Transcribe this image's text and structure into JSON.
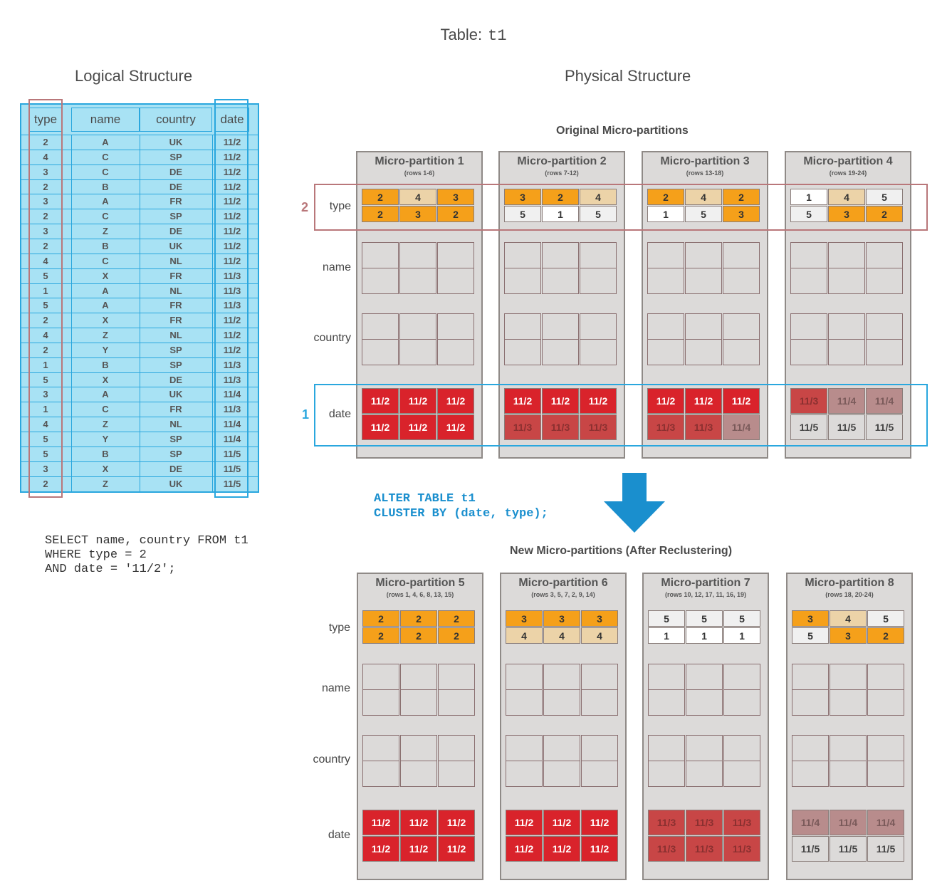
{
  "title": {
    "label": "Table:",
    "name": "t1"
  },
  "logical": {
    "title": "Logical Structure",
    "headers": [
      "type",
      "name",
      "country",
      "date"
    ],
    "rows": [
      [
        "2",
        "A",
        "UK",
        "11/2"
      ],
      [
        "4",
        "C",
        "SP",
        "11/2"
      ],
      [
        "3",
        "C",
        "DE",
        "11/2"
      ],
      [
        "2",
        "B",
        "DE",
        "11/2"
      ],
      [
        "3",
        "A",
        "FR",
        "11/2"
      ],
      [
        "2",
        "C",
        "SP",
        "11/2"
      ],
      [
        "3",
        "Z",
        "DE",
        "11/2"
      ],
      [
        "2",
        "B",
        "UK",
        "11/2"
      ],
      [
        "4",
        "C",
        "NL",
        "11/2"
      ],
      [
        "5",
        "X",
        "FR",
        "11/3"
      ],
      [
        "1",
        "A",
        "NL",
        "11/3"
      ],
      [
        "5",
        "A",
        "FR",
        "11/3"
      ],
      [
        "2",
        "X",
        "FR",
        "11/2"
      ],
      [
        "4",
        "Z",
        "NL",
        "11/2"
      ],
      [
        "2",
        "Y",
        "SP",
        "11/2"
      ],
      [
        "1",
        "B",
        "SP",
        "11/3"
      ],
      [
        "5",
        "X",
        "DE",
        "11/3"
      ],
      [
        "3",
        "A",
        "UK",
        "11/4"
      ],
      [
        "1",
        "C",
        "FR",
        "11/3"
      ],
      [
        "4",
        "Z",
        "NL",
        "11/4"
      ],
      [
        "5",
        "Y",
        "SP",
        "11/4"
      ],
      [
        "5",
        "B",
        "SP",
        "11/5"
      ],
      [
        "3",
        "X",
        "DE",
        "11/5"
      ],
      [
        "2",
        "Z",
        "UK",
        "11/5"
      ]
    ]
  },
  "query": "SELECT name, country FROM t1\nWHERE type = 2\nAND date = '11/2';",
  "physical": {
    "title": "Physical Structure"
  },
  "original_title": "Original Micro-partitions",
  "new_title": "New Micro-partitions (After Reclustering)",
  "alter_sql": "ALTER TABLE t1\nCLUSTER BY (date, type);",
  "row_labels": {
    "type": "type",
    "name": "name",
    "country": "country",
    "date": "date"
  },
  "markers": {
    "one": "1",
    "two": "2"
  },
  "colors": {
    "orange": "#f5a01a",
    "tan": "#ecd3a8",
    "white": "#ffffff",
    "light": "#f0f0f0",
    "red": "#d9232b",
    "dullred": "#c84646",
    "mauve": "#b88c8c",
    "pale": "#dcdad9"
  },
  "original": [
    {
      "title": "Micro-partition 1",
      "rows": "(rows 1-6)",
      "type": [
        [
          "2",
          "orange"
        ],
        [
          "4",
          "tan"
        ],
        [
          "3",
          "orange"
        ],
        [
          "2",
          "orange"
        ],
        [
          "3",
          "orange"
        ],
        [
          "2",
          "orange"
        ]
      ],
      "date": [
        [
          "11/2",
          "red"
        ],
        [
          "11/2",
          "red"
        ],
        [
          "11/2",
          "red"
        ],
        [
          "11/2",
          "red"
        ],
        [
          "11/2",
          "red"
        ],
        [
          "11/2",
          "red"
        ]
      ]
    },
    {
      "title": "Micro-partition 2",
      "rows": "(rows 7-12)",
      "type": [
        [
          "3",
          "orange"
        ],
        [
          "2",
          "orange"
        ],
        [
          "4",
          "tan"
        ],
        [
          "5",
          "light"
        ],
        [
          "1",
          "white"
        ],
        [
          "5",
          "light"
        ]
      ],
      "date": [
        [
          "11/2",
          "red"
        ],
        [
          "11/2",
          "red"
        ],
        [
          "11/2",
          "red"
        ],
        [
          "11/3",
          "dullred"
        ],
        [
          "11/3",
          "dullred"
        ],
        [
          "11/3",
          "dullred"
        ]
      ]
    },
    {
      "title": "Micro-partition 3",
      "rows": "(rows 13-18)",
      "type": [
        [
          "2",
          "orange"
        ],
        [
          "4",
          "tan"
        ],
        [
          "2",
          "orange"
        ],
        [
          "1",
          "white"
        ],
        [
          "5",
          "light"
        ],
        [
          "3",
          "orange"
        ]
      ],
      "date": [
        [
          "11/2",
          "red"
        ],
        [
          "11/2",
          "red"
        ],
        [
          "11/2",
          "red"
        ],
        [
          "11/3",
          "dullred"
        ],
        [
          "11/3",
          "dullred"
        ],
        [
          "11/4",
          "mauve"
        ]
      ]
    },
    {
      "title": "Micro-partition 4",
      "rows": "(rows 19-24)",
      "type": [
        [
          "1",
          "white"
        ],
        [
          "4",
          "tan"
        ],
        [
          "5",
          "light"
        ],
        [
          "5",
          "light"
        ],
        [
          "3",
          "orange"
        ],
        [
          "2",
          "orange"
        ]
      ],
      "date": [
        [
          "11/3",
          "dullred"
        ],
        [
          "11/4",
          "mauve"
        ],
        [
          "11/4",
          "mauve"
        ],
        [
          "11/5",
          "pale"
        ],
        [
          "11/5",
          "pale"
        ],
        [
          "11/5",
          "pale"
        ]
      ]
    }
  ],
  "reclustered": [
    {
      "title": "Micro-partition 5",
      "rows": "(rows 1, 4, 6, 8, 13, 15)",
      "type": [
        [
          "2",
          "orange"
        ],
        [
          "2",
          "orange"
        ],
        [
          "2",
          "orange"
        ],
        [
          "2",
          "orange"
        ],
        [
          "2",
          "orange"
        ],
        [
          "2",
          "orange"
        ]
      ],
      "date": [
        [
          "11/2",
          "red"
        ],
        [
          "11/2",
          "red"
        ],
        [
          "11/2",
          "red"
        ],
        [
          "11/2",
          "red"
        ],
        [
          "11/2",
          "red"
        ],
        [
          "11/2",
          "red"
        ]
      ]
    },
    {
      "title": "Micro-partition 6",
      "rows": "(rows 3, 5, 7, 2, 9, 14)",
      "type": [
        [
          "3",
          "orange"
        ],
        [
          "3",
          "orange"
        ],
        [
          "3",
          "orange"
        ],
        [
          "4",
          "tan"
        ],
        [
          "4",
          "tan"
        ],
        [
          "4",
          "tan"
        ]
      ],
      "date": [
        [
          "11/2",
          "red"
        ],
        [
          "11/2",
          "red"
        ],
        [
          "11/2",
          "red"
        ],
        [
          "11/2",
          "red"
        ],
        [
          "11/2",
          "red"
        ],
        [
          "11/2",
          "red"
        ]
      ]
    },
    {
      "title": "Micro-partition 7",
      "rows": "(rows 10, 12, 17, 11, 16, 19)",
      "type": [
        [
          "5",
          "light"
        ],
        [
          "5",
          "light"
        ],
        [
          "5",
          "light"
        ],
        [
          "1",
          "white"
        ],
        [
          "1",
          "white"
        ],
        [
          "1",
          "white"
        ]
      ],
      "date": [
        [
          "11/3",
          "dullred"
        ],
        [
          "11/3",
          "dullred"
        ],
        [
          "11/3",
          "dullred"
        ],
        [
          "11/3",
          "dullred"
        ],
        [
          "11/3",
          "dullred"
        ],
        [
          "11/3",
          "dullred"
        ]
      ]
    },
    {
      "title": "Micro-partition 8",
      "rows": "(rows 18, 20-24)",
      "type": [
        [
          "3",
          "orange"
        ],
        [
          "4",
          "tan"
        ],
        [
          "5",
          "light"
        ],
        [
          "5",
          "light"
        ],
        [
          "3",
          "orange"
        ],
        [
          "2",
          "orange"
        ]
      ],
      "date": [
        [
          "11/4",
          "mauve"
        ],
        [
          "11/4",
          "mauve"
        ],
        [
          "11/4",
          "mauve"
        ],
        [
          "11/5",
          "pale"
        ],
        [
          "11/5",
          "pale"
        ],
        [
          "11/5",
          "pale"
        ]
      ]
    }
  ]
}
